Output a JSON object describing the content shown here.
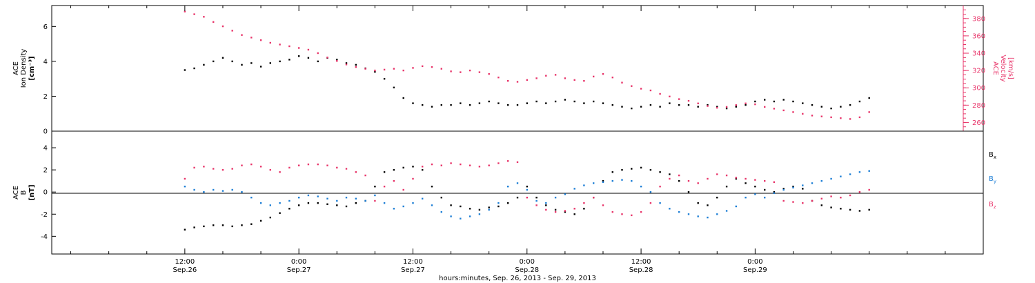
{
  "colors": {
    "black": "#000000",
    "pink": "#e8356a",
    "blue": "#1e7fd6"
  },
  "chart_data": [
    {
      "type": "scatter",
      "panel": "top",
      "left_axis_label": [
        "ACE",
        "Ion Density",
        "[cm⁻³]"
      ],
      "right_axis_label": [
        "ACE",
        "Velocity",
        "[km/s]"
      ],
      "left_ylim": [
        0,
        7.2
      ],
      "left_yticks": [
        "0",
        "2",
        "4",
        "6"
      ],
      "right_ylim": [
        250,
        395
      ],
      "right_yticks": [
        "260",
        "280",
        "300",
        "320",
        "340",
        "360",
        "380"
      ],
      "series": [
        {
          "axis": "left",
          "color": "#000000",
          "x": [
            0,
            1,
            2,
            3,
            4,
            5,
            6,
            7,
            8,
            9,
            10,
            11,
            12,
            13,
            14,
            15,
            16,
            17,
            18,
            19,
            20,
            21,
            22,
            23,
            24,
            25,
            26,
            27,
            28,
            29,
            30,
            31,
            32,
            33,
            34,
            35,
            36,
            37,
            38,
            39,
            40,
            41,
            42,
            43,
            44,
            45,
            46,
            47,
            48,
            49,
            50,
            51,
            52,
            53,
            54,
            55,
            56,
            57,
            58,
            59,
            60,
            61,
            62,
            63,
            64,
            65,
            66,
            67,
            68,
            69,
            70,
            71,
            72
          ],
          "y": [
            3.5,
            3.6,
            3.8,
            4.0,
            4.2,
            4.0,
            3.8,
            3.9,
            3.7,
            3.9,
            4.0,
            4.1,
            4.3,
            4.2,
            4.0,
            4.2,
            4.1,
            3.9,
            3.8,
            3.6,
            3.4,
            3.0,
            2.5,
            1.9,
            1.6,
            1.5,
            1.4,
            1.5,
            1.5,
            1.6,
            1.5,
            1.6,
            1.7,
            1.6,
            1.5,
            1.5,
            1.6,
            1.7,
            1.6,
            1.7,
            1.8,
            1.7,
            1.6,
            1.7,
            1.6,
            1.5,
            1.4,
            1.3,
            1.4,
            1.5,
            1.4,
            1.6,
            1.5,
            1.5,
            1.4,
            1.5,
            1.4,
            1.3,
            1.4,
            1.5,
            1.7,
            1.8,
            1.7,
            1.8,
            1.7,
            1.6,
            1.5,
            1.4,
            1.3,
            1.4,
            1.5,
            1.7,
            1.9
          ]
        },
        {
          "axis": "right",
          "color": "#e8356a",
          "x": [
            0,
            1,
            2,
            3,
            4,
            5,
            6,
            7,
            8,
            9,
            10,
            11,
            12,
            13,
            14,
            15,
            16,
            17,
            18,
            19,
            20,
            21,
            22,
            23,
            24,
            25,
            26,
            27,
            28,
            29,
            30,
            31,
            32,
            33,
            34,
            35,
            36,
            37,
            38,
            39,
            40,
            41,
            42,
            43,
            44,
            45,
            46,
            47,
            48,
            49,
            50,
            51,
            52,
            53,
            54,
            55,
            56,
            57,
            58,
            59,
            60,
            61,
            62,
            63,
            64,
            65,
            66,
            67,
            68,
            69,
            70,
            71,
            72
          ],
          "y": [
            388,
            385,
            382,
            376,
            371,
            366,
            361,
            358,
            355,
            352,
            350,
            348,
            346,
            344,
            340,
            335,
            331,
            327,
            324,
            322,
            320,
            321,
            322,
            320,
            323,
            325,
            324,
            322,
            319,
            318,
            320,
            318,
            316,
            312,
            308,
            307,
            309,
            311,
            314,
            315,
            311,
            309,
            308,
            313,
            316,
            312,
            306,
            302,
            299,
            297,
            293,
            290,
            287,
            285,
            282,
            279,
            277,
            278,
            280,
            282,
            281,
            278,
            276,
            274,
            272,
            270,
            268,
            267,
            266,
            265,
            264,
            266,
            272
          ]
        }
      ]
    },
    {
      "type": "scatter",
      "panel": "bottom",
      "left_axis_label": [
        "ACE",
        "B",
        "[nT]"
      ],
      "ylim": [
        -5.6,
        5.5
      ],
      "yticks": [
        "-4",
        "-2",
        "0",
        "2",
        "4"
      ],
      "legend": [
        {
          "base": "B",
          "sub": "x",
          "color": "#000000"
        },
        {
          "base": "B",
          "sub": "y",
          "color": "#1e7fd6"
        },
        {
          "base": "B",
          "sub": "z",
          "color": "#e8356a"
        }
      ],
      "series": [
        {
          "color": "#000000",
          "x": [
            0,
            1,
            2,
            3,
            4,
            5,
            6,
            7,
            8,
            9,
            10,
            11,
            12,
            13,
            14,
            15,
            16,
            17,
            18,
            19,
            20,
            21,
            22,
            23,
            24,
            25,
            26,
            27,
            28,
            29,
            30,
            31,
            32,
            33,
            34,
            35,
            36,
            37,
            38,
            39,
            40,
            41,
            42,
            43,
            44,
            45,
            46,
            47,
            48,
            49,
            50,
            51,
            52,
            53,
            54,
            55,
            56,
            57,
            58,
            59,
            60,
            61,
            62,
            63,
            64,
            65,
            66,
            67,
            68,
            69,
            70,
            71,
            72
          ],
          "y": [
            -3.4,
            -3.2,
            -3.1,
            -3.0,
            -3.0,
            -3.1,
            -3.0,
            -2.9,
            -2.6,
            -2.3,
            -1.9,
            -1.5,
            -1.2,
            -1.0,
            -1.0,
            -1.1,
            -1.2,
            -1.3,
            -1.0,
            -0.8,
            0.5,
            1.8,
            2.0,
            2.2,
            2.3,
            2.0,
            0.5,
            -0.5,
            -1.2,
            -1.3,
            -1.5,
            -1.6,
            -1.4,
            -1.3,
            -1.0,
            -0.5,
            0.5,
            -0.5,
            -1.2,
            -1.6,
            -1.8,
            -2.0,
            -1.5,
            -0.5,
            1.0,
            1.8,
            2.0,
            2.1,
            2.2,
            2.0,
            1.8,
            1.6,
            1.0,
            0.0,
            -1.0,
            -1.2,
            -0.5,
            0.5,
            1.2,
            0.8,
            0.5,
            0.2,
            0.0,
            0.3,
            0.5,
            0.3,
            -0.8,
            -1.2,
            -1.4,
            -1.5,
            -1.6,
            -1.7,
            -1.6
          ]
        },
        {
          "color": "#1e7fd6",
          "x": [
            0,
            1,
            2,
            3,
            4,
            5,
            6,
            7,
            8,
            9,
            10,
            11,
            12,
            13,
            14,
            15,
            16,
            17,
            18,
            19,
            20,
            21,
            22,
            23,
            24,
            25,
            26,
            27,
            28,
            29,
            30,
            31,
            32,
            33,
            34,
            35,
            36,
            37,
            38,
            39,
            40,
            41,
            42,
            43,
            44,
            45,
            46,
            47,
            48,
            49,
            50,
            51,
            52,
            53,
            54,
            55,
            56,
            57,
            58,
            59,
            60,
            61,
            62,
            63,
            64,
            65,
            66,
            67,
            68,
            69,
            70,
            71,
            72
          ],
          "y": [
            0.5,
            0.2,
            0.0,
            0.2,
            0.1,
            0.2,
            0.0,
            -0.5,
            -1.0,
            -1.2,
            -1.0,
            -0.8,
            -0.5,
            -0.3,
            -0.4,
            -0.6,
            -0.8,
            -0.5,
            -0.6,
            -0.8,
            -0.3,
            -1.0,
            -1.5,
            -1.3,
            -1.0,
            -0.6,
            -1.2,
            -1.8,
            -2.2,
            -2.4,
            -2.2,
            -2.0,
            -1.6,
            -1.0,
            0.5,
            0.8,
            0.2,
            -0.8,
            -1.0,
            -0.5,
            -0.2,
            0.3,
            0.6,
            0.8,
            0.9,
            1.0,
            1.1,
            1.0,
            0.5,
            0.0,
            -1.0,
            -1.5,
            -1.8,
            -2.0,
            -2.2,
            -2.3,
            -2.0,
            -1.7,
            -1.3,
            -0.5,
            -0.2,
            -0.5,
            -0.1,
            0.2,
            0.4,
            0.6,
            0.8,
            1.0,
            1.2,
            1.4,
            1.6,
            1.8,
            1.9
          ]
        },
        {
          "color": "#e8356a",
          "x": [
            0,
            1,
            2,
            3,
            4,
            5,
            6,
            7,
            8,
            9,
            10,
            11,
            12,
            13,
            14,
            15,
            16,
            17,
            18,
            19,
            20,
            21,
            22,
            23,
            24,
            25,
            26,
            27,
            28,
            29,
            30,
            31,
            32,
            33,
            34,
            35,
            36,
            37,
            38,
            39,
            40,
            41,
            42,
            43,
            44,
            45,
            46,
            47,
            48,
            49,
            50,
            51,
            52,
            53,
            54,
            55,
            56,
            57,
            58,
            59,
            60,
            61,
            62,
            63,
            64,
            65,
            66,
            67,
            68,
            69,
            70,
            71,
            72
          ],
          "y": [
            1.2,
            2.2,
            2.3,
            2.1,
            2.0,
            2.1,
            2.4,
            2.5,
            2.3,
            2.0,
            1.8,
            2.2,
            2.4,
            2.5,
            2.5,
            2.4,
            2.2,
            2.1,
            1.8,
            1.5,
            -0.8,
            0.5,
            1.0,
            0.2,
            1.2,
            2.3,
            2.5,
            2.4,
            2.6,
            2.5,
            2.4,
            2.3,
            2.4,
            2.6,
            2.8,
            2.7,
            -0.5,
            -1.2,
            -1.6,
            -1.8,
            -1.7,
            -1.5,
            -1.0,
            -0.5,
            -1.2,
            -1.8,
            -2.0,
            -2.1,
            -1.8,
            -1.0,
            0.5,
            1.2,
            1.5,
            1.0,
            0.8,
            1.2,
            1.6,
            1.5,
            1.3,
            1.2,
            1.1,
            1.0,
            0.9,
            -0.8,
            -0.9,
            -1.0,
            -0.8,
            -0.6,
            -0.4,
            -0.5,
            -0.3,
            0.0,
            0.2
          ]
        }
      ]
    }
  ],
  "x_axis": {
    "range_hours": [
      -14,
      84
    ],
    "ticks": [
      {
        "hour": 0,
        "time": "12:00",
        "date": "Sep.26"
      },
      {
        "hour": 12,
        "time": "0:00",
        "date": "Sep.27"
      },
      {
        "hour": 24,
        "time": "12:00",
        "date": "Sep.27"
      },
      {
        "hour": 36,
        "time": "0:00",
        "date": "Sep.28"
      },
      {
        "hour": 48,
        "time": "12:00",
        "date": "Sep.28"
      },
      {
        "hour": 60,
        "time": "0:00",
        "date": "Sep.29"
      }
    ],
    "xlabel": "hours:minutes, Sep. 26, 2013 - Sep. 29, 2013"
  }
}
